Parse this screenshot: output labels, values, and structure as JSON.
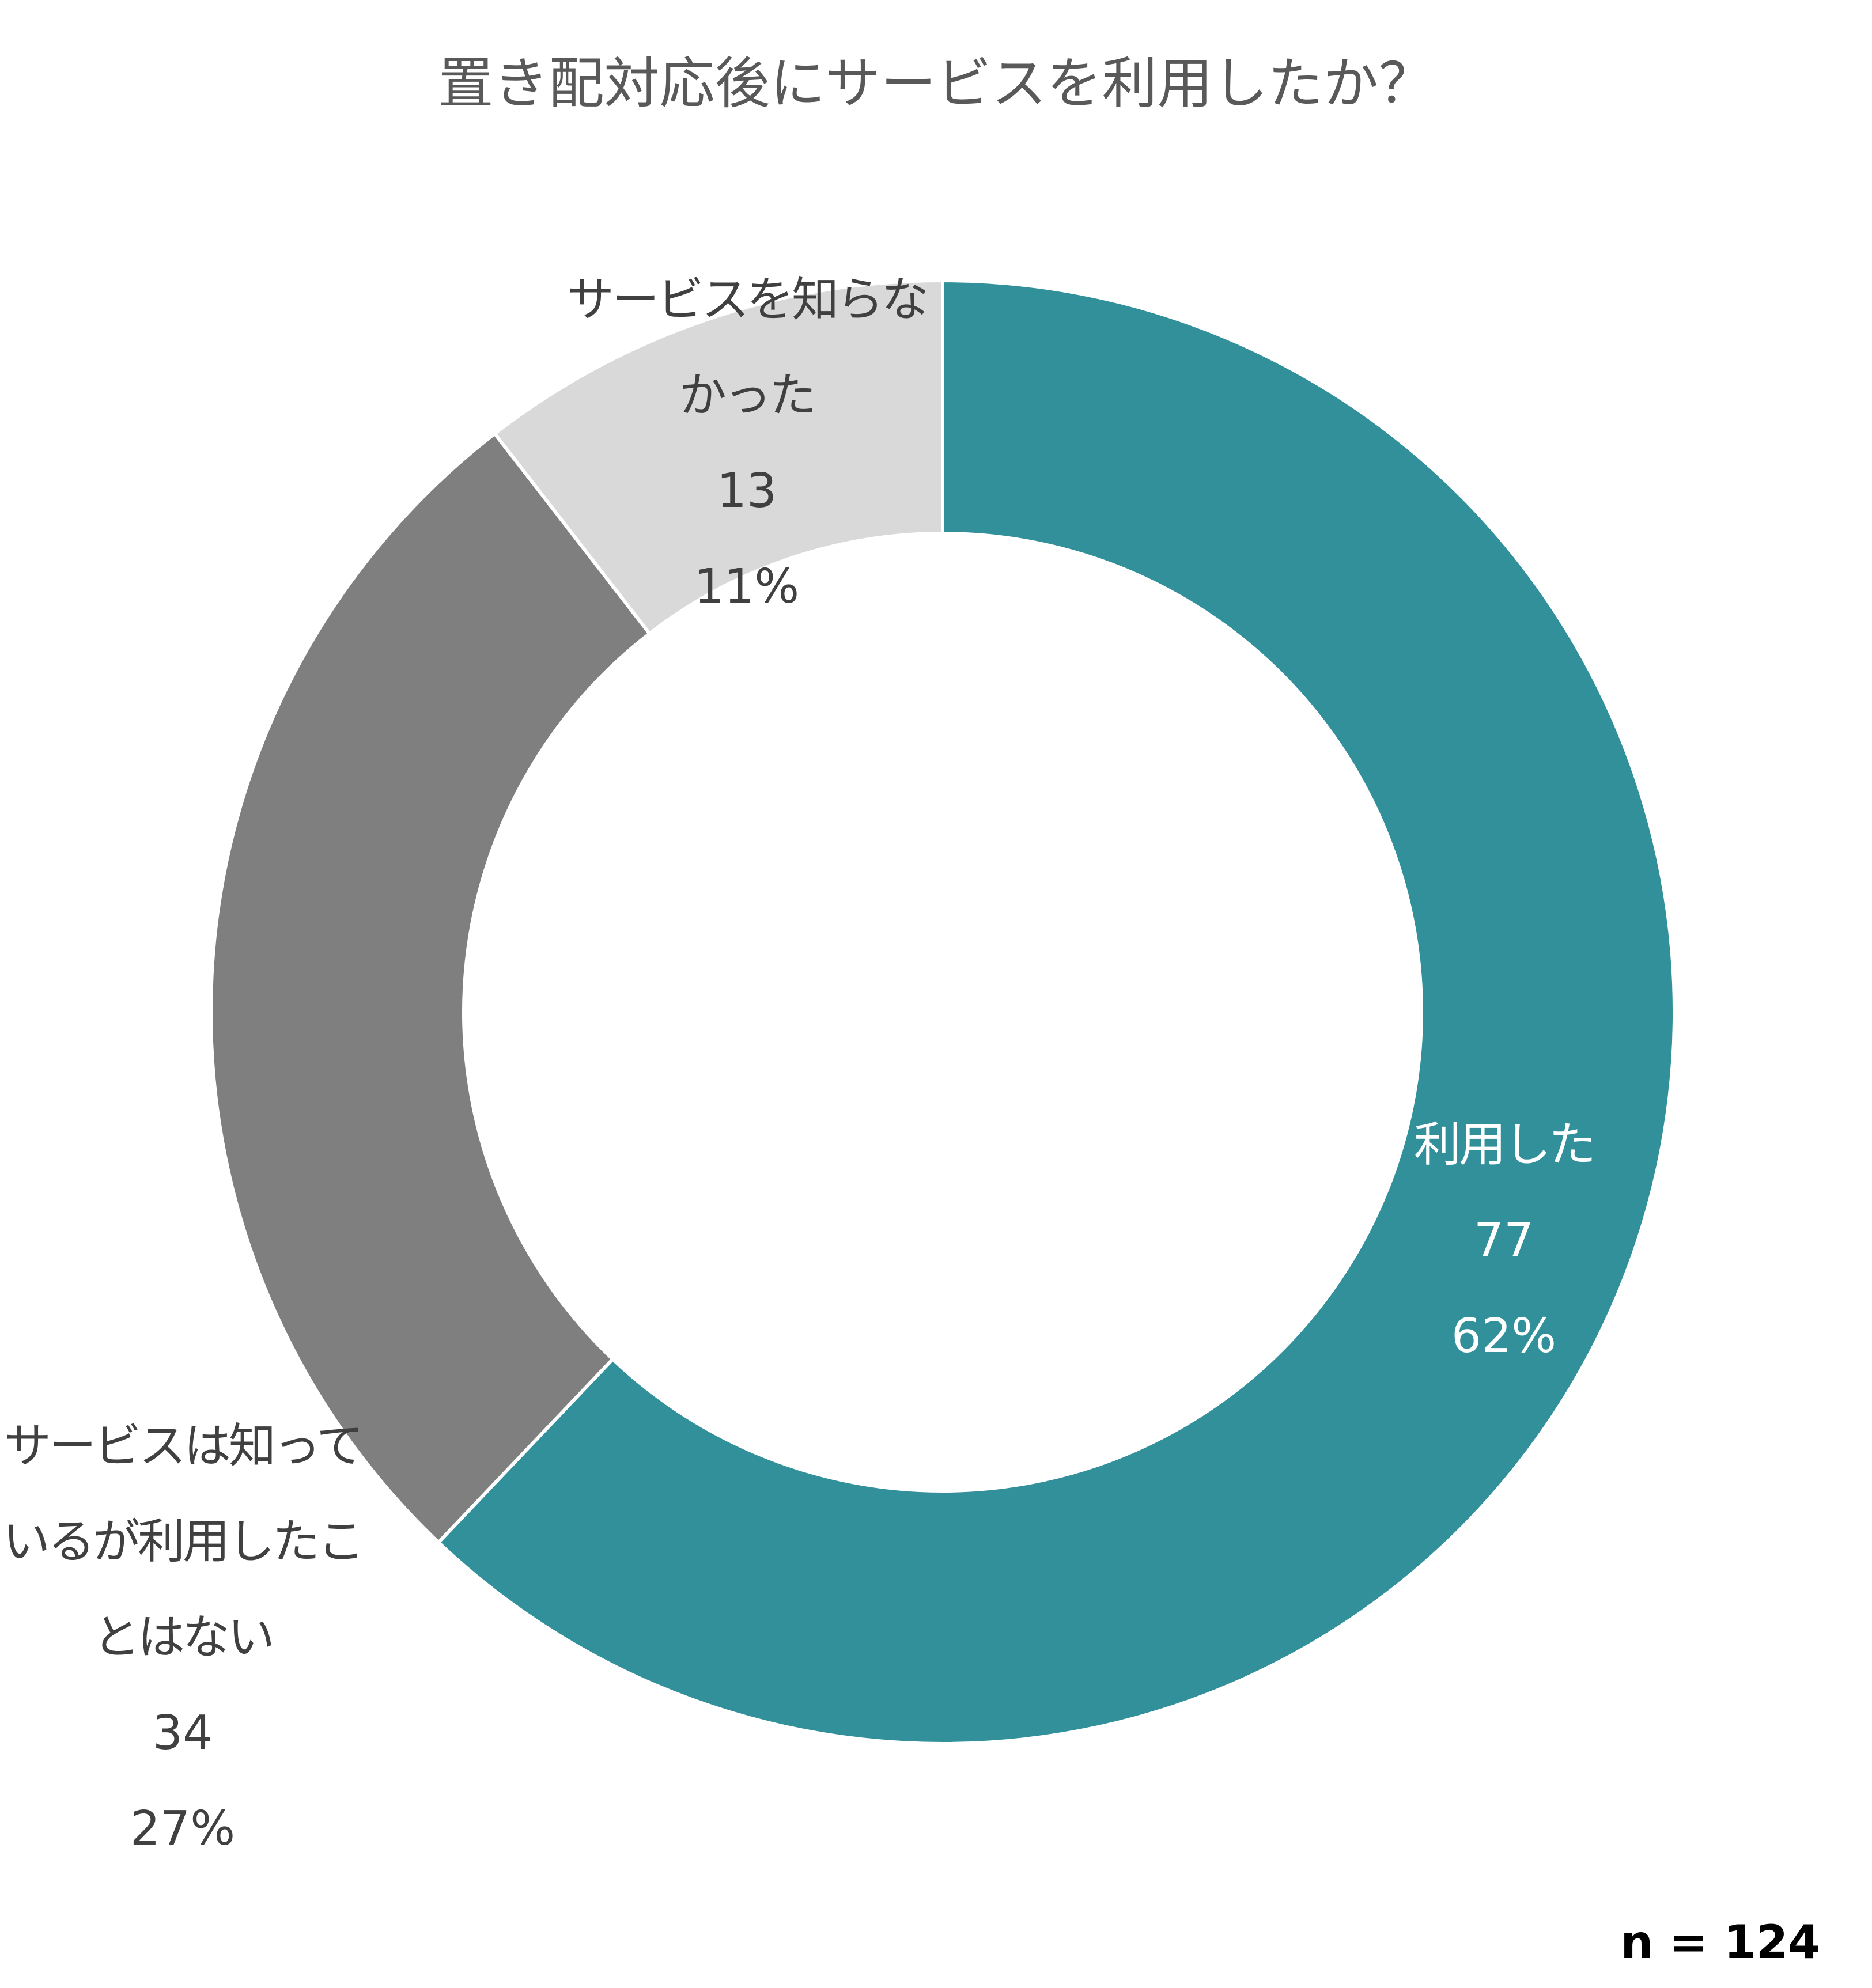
{
  "chart_data": {
    "type": "donut",
    "title": "置き配対応後にサービスを利用したか？",
    "categories": [
      "利用した",
      "サービスは知っているが利用したことはない",
      "サービスを知らなかった"
    ],
    "values": [
      77,
      34,
      13
    ],
    "percentages": [
      {
        "value": 62,
        "label": "62%"
      },
      {
        "value": 27,
        "label": "27%"
      },
      {
        "value": 11,
        "label": "11%"
      }
    ],
    "colors": [
      "#31909a",
      "#7f7f7f",
      "#d9d9d9"
    ],
    "label_colors": [
      "#ffffff",
      "#404040",
      "#404040"
    ],
    "note": "n = 124"
  }
}
